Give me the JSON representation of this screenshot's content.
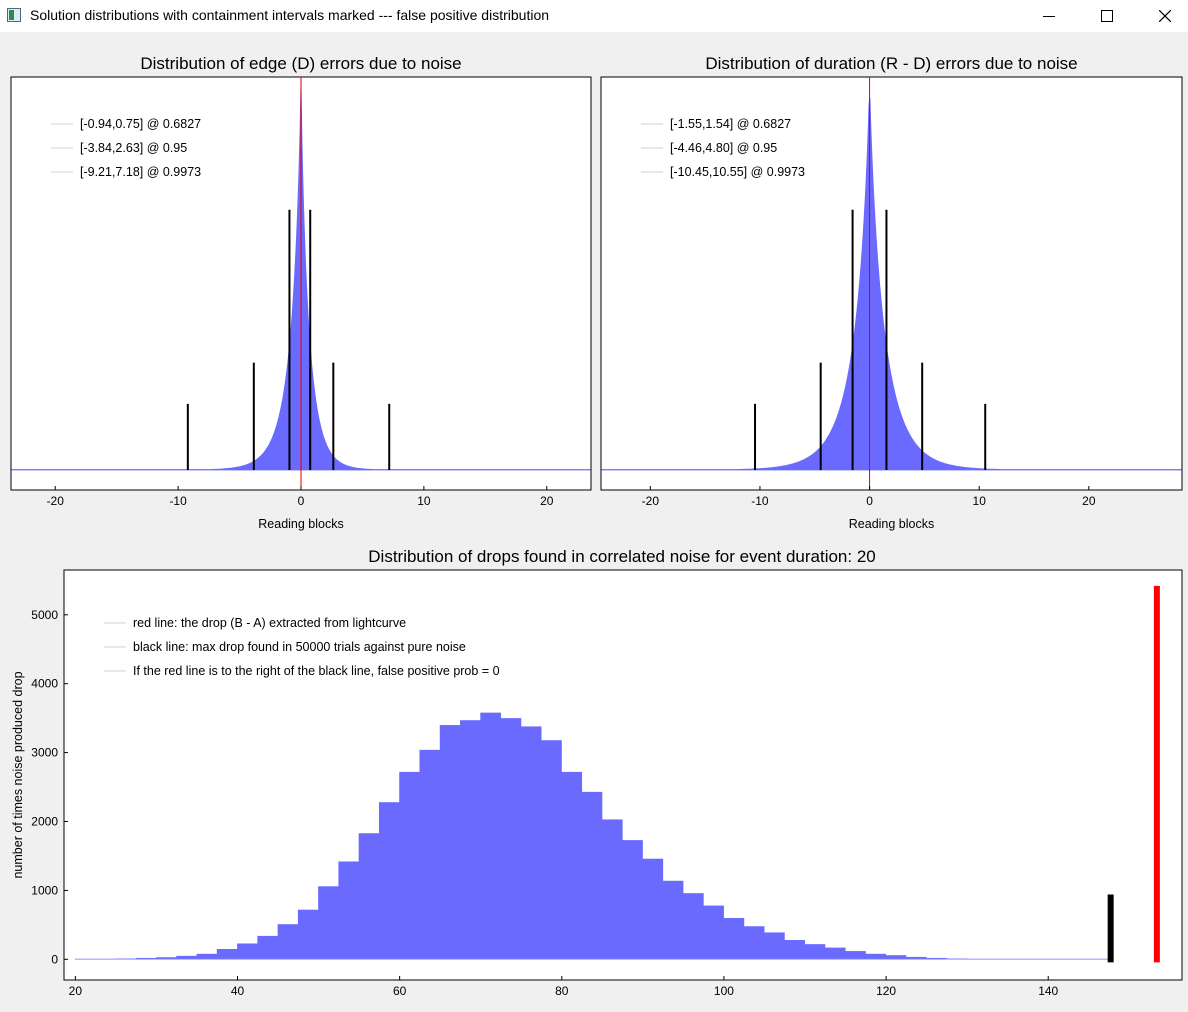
{
  "window": {
    "title": "Solution distributions with containment intervals marked --- false positive distribution",
    "icons": {
      "app": "chart-app-icon",
      "minimize": "minimize-icon",
      "maximize": "maximize-icon",
      "close": "close-icon"
    }
  },
  "colors": {
    "histogram": "#6a6aff",
    "marker": "#000000",
    "center": "#e00000",
    "extracted": "#ff0000",
    "frame": "#000000"
  },
  "chart_data": [
    {
      "type": "bar",
      "title": "Distribution of edge (D) errors due to noise",
      "xlabel": "Reading blocks",
      "ylabel": "",
      "xlim": [
        -23.6,
        23.6
      ],
      "xticks": [
        -20,
        -10,
        0,
        10,
        20
      ],
      "yticks": [],
      "distribution": {
        "center": 0,
        "sigma_left": 0.94,
        "sigma_right": 0.75,
        "shape": "laplace-like"
      },
      "center_line": 0,
      "intervals": [
        {
          "label": "[-0.94,0.75] @ 0.6827",
          "low": -0.94,
          "high": 0.75,
          "level": 0.6827
        },
        {
          "label": "[-3.84,2.63] @ 0.95",
          "low": -3.84,
          "high": 2.63,
          "level": 0.95
        },
        {
          "label": "[-9.21,7.18] @ 0.9973",
          "low": -9.21,
          "high": 7.18,
          "level": 0.9973
        }
      ],
      "legend": "top-left",
      "grid": false
    },
    {
      "type": "bar",
      "title": "Distribution of duration (R - D) errors due to noise",
      "xlabel": "Reading blocks",
      "ylabel": "",
      "xlim": [
        -24.5,
        28.5
      ],
      "xticks": [
        -20,
        -10,
        0,
        10,
        20
      ],
      "yticks": [],
      "distribution": {
        "center": 0,
        "sigma_left": 1.55,
        "sigma_right": 1.54,
        "shape": "laplace-like"
      },
      "center_line": 0,
      "intervals": [
        {
          "label": "[-1.55,1.54] @ 0.6827",
          "low": -1.55,
          "high": 1.54,
          "level": 0.6827
        },
        {
          "label": "[-4.46,4.80] @ 0.95",
          "low": -4.46,
          "high": 4.8,
          "level": 0.95
        },
        {
          "label": "[-10.45,10.55] @ 0.9973",
          "low": -10.45,
          "high": 10.55,
          "level": 0.9973
        }
      ],
      "legend": "top-left",
      "grid": false
    },
    {
      "type": "bar",
      "title": "Distribution of drops found in correlated noise for event duration: 20",
      "xlabel": "",
      "ylabel": "number of times noise produced drop",
      "xlim": [
        18.6,
        156.5
      ],
      "ylim": [
        -300,
        5650
      ],
      "xticks": [
        20,
        40,
        60,
        80,
        100,
        120,
        140
      ],
      "yticks": [
        0,
        1000,
        2000,
        3000,
        4000,
        5000
      ],
      "bin_width": 2.5,
      "bins": [
        {
          "x": 21.2,
          "y": 5
        },
        {
          "x": 23.7,
          "y": 8
        },
        {
          "x": 26.2,
          "y": 12
        },
        {
          "x": 28.7,
          "y": 20
        },
        {
          "x": 31.2,
          "y": 30
        },
        {
          "x": 33.7,
          "y": 50
        },
        {
          "x": 36.2,
          "y": 80
        },
        {
          "x": 38.7,
          "y": 150
        },
        {
          "x": 41.2,
          "y": 230
        },
        {
          "x": 43.7,
          "y": 340
        },
        {
          "x": 46.2,
          "y": 510
        },
        {
          "x": 48.7,
          "y": 720
        },
        {
          "x": 51.2,
          "y": 1060
        },
        {
          "x": 53.7,
          "y": 1420
        },
        {
          "x": 56.2,
          "y": 1830
        },
        {
          "x": 58.7,
          "y": 2280
        },
        {
          "x": 61.2,
          "y": 2720
        },
        {
          "x": 63.7,
          "y": 3040
        },
        {
          "x": 66.2,
          "y": 3400
        },
        {
          "x": 68.7,
          "y": 3470
        },
        {
          "x": 71.2,
          "y": 3580
        },
        {
          "x": 73.7,
          "y": 3500
        },
        {
          "x": 76.2,
          "y": 3380
        },
        {
          "x": 78.7,
          "y": 3180
        },
        {
          "x": 81.2,
          "y": 2720
        },
        {
          "x": 83.7,
          "y": 2430
        },
        {
          "x": 86.2,
          "y": 2030
        },
        {
          "x": 88.7,
          "y": 1730
        },
        {
          "x": 91.2,
          "y": 1460
        },
        {
          "x": 93.7,
          "y": 1140
        },
        {
          "x": 96.2,
          "y": 960
        },
        {
          "x": 98.7,
          "y": 780
        },
        {
          "x": 101.2,
          "y": 600
        },
        {
          "x": 103.7,
          "y": 480
        },
        {
          "x": 106.2,
          "y": 390
        },
        {
          "x": 108.7,
          "y": 280
        },
        {
          "x": 111.2,
          "y": 220
        },
        {
          "x": 113.7,
          "y": 170
        },
        {
          "x": 116.2,
          "y": 120
        },
        {
          "x": 118.7,
          "y": 80
        },
        {
          "x": 121.2,
          "y": 60
        },
        {
          "x": 123.7,
          "y": 35
        },
        {
          "x": 126.2,
          "y": 20
        },
        {
          "x": 128.7,
          "y": 12
        },
        {
          "x": 131.2,
          "y": 8
        },
        {
          "x": 133.7,
          "y": 5
        },
        {
          "x": 136.2,
          "y": 3
        },
        {
          "x": 138.7,
          "y": 2
        },
        {
          "x": 141.2,
          "y": 1
        },
        {
          "x": 143.7,
          "y": 1
        },
        {
          "x": 146.2,
          "y": 1
        }
      ],
      "max_noise_drop": {
        "x": 147.7,
        "y": 940
      },
      "extracted_drop": {
        "x": 153.4,
        "y": 5420
      },
      "legend_entries": [
        "red line: the drop (B - A) extracted from lightcurve",
        "black line: max drop found in 50000 trials against pure noise",
        "If the red line is to the right of the black line, false positive prob = 0"
      ],
      "legend": "top-left",
      "grid": false
    }
  ]
}
